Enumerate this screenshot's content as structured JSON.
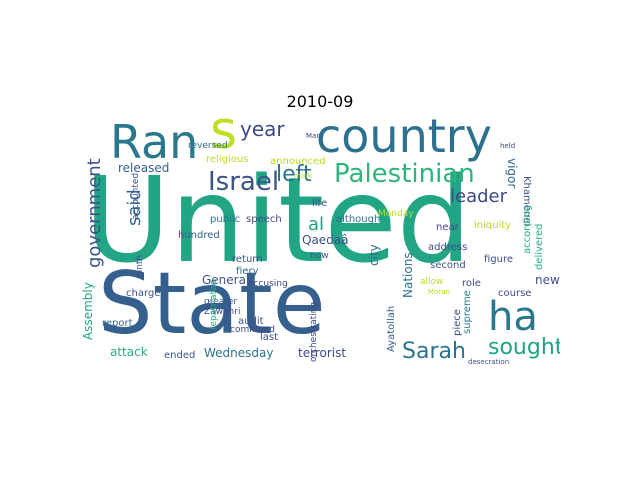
{
  "title": "2010-09",
  "words": [
    {
      "text": "United",
      "color": "#21a585",
      "size": 118
    },
    {
      "text": "State",
      "color": "#35608d",
      "size": 86
    },
    {
      "text": "country",
      "color": "#2c728e",
      "size": 46
    },
    {
      "text": "Ran",
      "color": "#2a788e",
      "size": 46
    },
    {
      "text": "s",
      "color": "#bddf26",
      "size": 52
    },
    {
      "text": "Palestinian",
      "color": "#2fb47c",
      "size": 26
    },
    {
      "text": "Israel",
      "color": "#3b528b",
      "size": 26
    },
    {
      "text": "left",
      "color": "#2c728e",
      "size": 22
    },
    {
      "text": "year",
      "color": "#3e4989",
      "size": 20
    },
    {
      "text": "ha",
      "color": "#2a788e",
      "size": 40
    },
    {
      "text": "Sarah",
      "color": "#2c728e",
      "size": 22
    },
    {
      "text": "sought",
      "color": "#20a386",
      "size": 22
    },
    {
      "text": "leader",
      "color": "#3e4989",
      "size": 18
    },
    {
      "text": "government",
      "color": "#3b528b",
      "size": 18
    },
    {
      "text": "said",
      "color": "#31688e",
      "size": 18
    },
    {
      "text": "al",
      "color": "#1fa088",
      "size": 18
    },
    {
      "text": "Qaedaâ",
      "color": "#3b528b",
      "size": 12
    },
    {
      "text": "released",
      "color": "#35608d",
      "size": 12
    },
    {
      "text": "Wednesday",
      "color": "#2c728e",
      "size": 12
    },
    {
      "text": "attack",
      "color": "#29af7f",
      "size": 12
    },
    {
      "text": "terrorist",
      "color": "#3e4989",
      "size": 12
    },
    {
      "text": "General",
      "color": "#3b528b",
      "size": 12
    },
    {
      "text": "city",
      "color": "#2c728e",
      "size": 12
    },
    {
      "text": "Nations",
      "color": "#2c728e",
      "size": 12
    },
    {
      "text": "vigor",
      "color": "#31688e",
      "size": 12
    },
    {
      "text": "Khamenei",
      "color": "#3b528b",
      "size": 10
    },
    {
      "text": "new",
      "color": "#3b528b",
      "size": 12
    },
    {
      "text": "religious",
      "color": "#b5de2b",
      "size": 10
    },
    {
      "text": "announced",
      "color": "#b5de2b",
      "size": 10
    },
    {
      "text": "Assembly",
      "color": "#20a386",
      "size": 12
    },
    {
      "text": "ended",
      "color": "#3b528b",
      "size": 10
    },
    {
      "text": "Ayatollah",
      "color": "#35608d",
      "size": 10
    },
    {
      "text": "supreme",
      "color": "#2a788e",
      "size": 10
    },
    {
      "text": "course",
      "color": "#3e4989",
      "size": 10
    },
    {
      "text": "delivered",
      "color": "#29af7f",
      "size": 10
    },
    {
      "text": "report",
      "color": "#31688e",
      "size": 10
    },
    {
      "text": "charge",
      "color": "#3b528b",
      "size": 10
    },
    {
      "text": "last",
      "color": "#3e4989",
      "size": 10
    },
    {
      "text": "audit",
      "color": "#3b528b",
      "size": 10
    },
    {
      "text": "fiery",
      "color": "#31688e",
      "size": 10
    },
    {
      "text": "public",
      "color": "#2c728e",
      "size": 10
    },
    {
      "text": "speech",
      "color": "#3e4989",
      "size": 10
    },
    {
      "text": "life",
      "color": "#3b528b",
      "size": 10
    },
    {
      "text": "although",
      "color": "#2c728e",
      "size": 10
    },
    {
      "text": "Monday",
      "color": "#b5de2b",
      "size": 9
    },
    {
      "text": "near",
      "color": "#3e4989",
      "size": 10
    },
    {
      "text": "address",
      "color": "#3e4989",
      "size": 10
    },
    {
      "text": "second",
      "color": "#3b528b",
      "size": 10
    },
    {
      "text": "role",
      "color": "#3e4989",
      "size": 10
    },
    {
      "text": "piece",
      "color": "#3e4989",
      "size": 10
    },
    {
      "text": "figure",
      "color": "#3e4989",
      "size": 10
    },
    {
      "text": "iniquity",
      "color": "#b5de2b",
      "size": 10
    },
    {
      "text": "according",
      "color": "#29af7f",
      "size": 10
    },
    {
      "text": "hundred",
      "color": "#35608d",
      "size": 10
    },
    {
      "text": "return",
      "color": "#3b528b",
      "size": 10
    },
    {
      "text": "command",
      "color": "#3e4989",
      "size": 9
    },
    {
      "text": "greater",
      "color": "#3b528b",
      "size": 9
    },
    {
      "text": "Zawahri",
      "color": "#3e4989",
      "size": 9
    },
    {
      "text": "ninth",
      "color": "#3e4989",
      "size": 9
    },
    {
      "text": "accounted",
      "color": "#3b528b",
      "size": 9
    },
    {
      "text": "repatriated",
      "color": "#29af7f",
      "size": 9
    },
    {
      "text": "accusing",
      "color": "#3e4989",
      "size": 9
    },
    {
      "text": "reversed",
      "color": "#2c728e",
      "size": 9
    },
    {
      "text": "orchestrating",
      "color": "#3e4989",
      "size": 9
    },
    {
      "text": "allow",
      "color": "#b5de2b",
      "size": 9
    },
    {
      "text": "now",
      "color": "#3b528b",
      "size": 9
    },
    {
      "text": "Man",
      "color": "#3e4989",
      "size": 7
    },
    {
      "text": "desecration",
      "color": "#3b528b",
      "size": 7
    },
    {
      "text": "Moran",
      "color": "#b5de2b",
      "size": 7
    },
    {
      "text": "mark",
      "color": "#b5de2b",
      "size": 7
    },
    {
      "text": "held",
      "color": "#3e4989",
      "size": 7
    }
  ]
}
